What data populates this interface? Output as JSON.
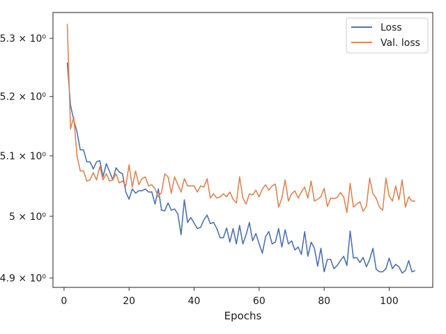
{
  "chart_data": {
    "type": "line",
    "xlabel": "Epochs",
    "ylabel": "",
    "xlim": [
      -3.4,
      113.4
    ],
    "ylim": [
      4.885,
      5.345
    ],
    "yscale": "log",
    "grid": false,
    "legend_position": "top-right",
    "x_ticks": [
      0,
      20,
      40,
      60,
      80,
      100
    ],
    "x_tick_labels": [
      "0",
      "20",
      "40",
      "60",
      "80",
      "100"
    ],
    "y_ticks": [
      4.9,
      5.0,
      5.1,
      5.2,
      5.3
    ],
    "y_tick_labels": [
      "4.9 × 10⁰",
      "5 × 10⁰",
      "5.1 × 10⁰",
      "5.2 × 10⁰",
      "5.3 × 10⁰"
    ],
    "x": [
      1,
      2,
      3,
      4,
      5,
      6,
      7,
      8,
      9,
      10,
      11,
      12,
      13,
      14,
      15,
      16,
      17,
      18,
      19,
      20,
      21,
      22,
      23,
      24,
      25,
      26,
      27,
      28,
      29,
      30,
      31,
      32,
      33,
      34,
      35,
      36,
      37,
      38,
      39,
      40,
      41,
      42,
      43,
      44,
      45,
      46,
      47,
      48,
      49,
      50,
      51,
      52,
      53,
      54,
      55,
      56,
      57,
      58,
      59,
      60,
      61,
      62,
      63,
      64,
      65,
      66,
      67,
      68,
      69,
      70,
      71,
      72,
      73,
      74,
      75,
      76,
      77,
      78,
      79,
      80,
      81,
      82,
      83,
      84,
      85,
      86,
      87,
      88,
      89,
      90,
      91,
      92,
      93,
      94,
      95,
      96,
      97,
      98,
      99,
      100,
      101,
      102,
      103,
      104,
      105,
      106,
      107,
      108
    ],
    "series": [
      {
        "name": "Loss",
        "color": "#4c72b0",
        "values": [
          5.258,
          5.185,
          5.16,
          5.14,
          5.11,
          5.11,
          5.09,
          5.09,
          5.078,
          5.09,
          5.092,
          5.065,
          5.087,
          5.074,
          5.06,
          5.08,
          5.073,
          5.07,
          5.04,
          5.028,
          5.045,
          5.038,
          5.042,
          5.042,
          5.045,
          5.04,
          5.04,
          5.02,
          5.045,
          5.01,
          5.009,
          5.022,
          5.01,
          5.012,
          5.004,
          4.97,
          5.027,
          4.99,
          4.998,
          4.989,
          4.98,
          4.982,
          4.994,
          5.002,
          4.988,
          4.99,
          4.98,
          4.965,
          4.965,
          4.981,
          4.958,
          4.98,
          4.955,
          4.985,
          4.955,
          4.97,
          4.99,
          4.96,
          4.972,
          4.955,
          4.94,
          4.967,
          4.975,
          4.955,
          4.958,
          4.98,
          4.95,
          4.978,
          4.955,
          4.96,
          4.945,
          4.95,
          4.938,
          4.975,
          4.935,
          4.958,
          4.948,
          4.919,
          4.948,
          4.91,
          4.93,
          4.93,
          4.915,
          4.92,
          4.928,
          4.935,
          4.92,
          4.976,
          4.932,
          4.933,
          4.925,
          4.933,
          4.918,
          4.93,
          4.948,
          4.914,
          4.91,
          4.91,
          4.915,
          4.932,
          4.915,
          4.922,
          4.918,
          4.908,
          4.912,
          4.928,
          4.91,
          4.912
        ]
      },
      {
        "name": "Val. loss",
        "color": "#dd8452",
        "values": [
          5.325,
          5.145,
          5.165,
          5.1,
          5.075,
          5.075,
          5.058,
          5.06,
          5.072,
          5.06,
          5.082,
          5.06,
          5.07,
          5.058,
          5.06,
          5.07,
          5.055,
          5.058,
          5.05,
          5.085,
          5.048,
          5.075,
          5.052,
          5.062,
          5.065,
          5.05,
          5.052,
          5.045,
          5.032,
          5.04,
          5.07,
          5.065,
          5.038,
          5.065,
          5.052,
          5.04,
          5.062,
          5.05,
          5.05,
          5.05,
          5.04,
          5.05,
          5.048,
          5.062,
          5.03,
          5.037,
          5.03,
          5.032,
          5.037,
          5.032,
          5.04,
          5.028,
          5.022,
          5.065,
          5.03,
          5.02,
          5.037,
          5.035,
          5.043,
          5.032,
          5.045,
          5.052,
          5.043,
          5.05,
          5.053,
          5.015,
          5.03,
          5.06,
          5.025,
          5.037,
          5.042,
          5.03,
          5.04,
          5.048,
          5.03,
          5.058,
          5.025,
          5.028,
          5.032,
          5.046,
          5.016,
          5.03,
          5.029,
          5.031,
          5.039,
          5.032,
          5.006,
          5.054,
          5.015,
          5.02,
          5.024,
          5.008,
          5.017,
          5.063,
          5.037,
          5.03,
          5.015,
          5.01,
          5.063,
          5.033,
          5.025,
          5.05,
          5.027,
          5.06,
          5.015,
          5.032,
          5.025,
          5.025
        ]
      }
    ]
  }
}
